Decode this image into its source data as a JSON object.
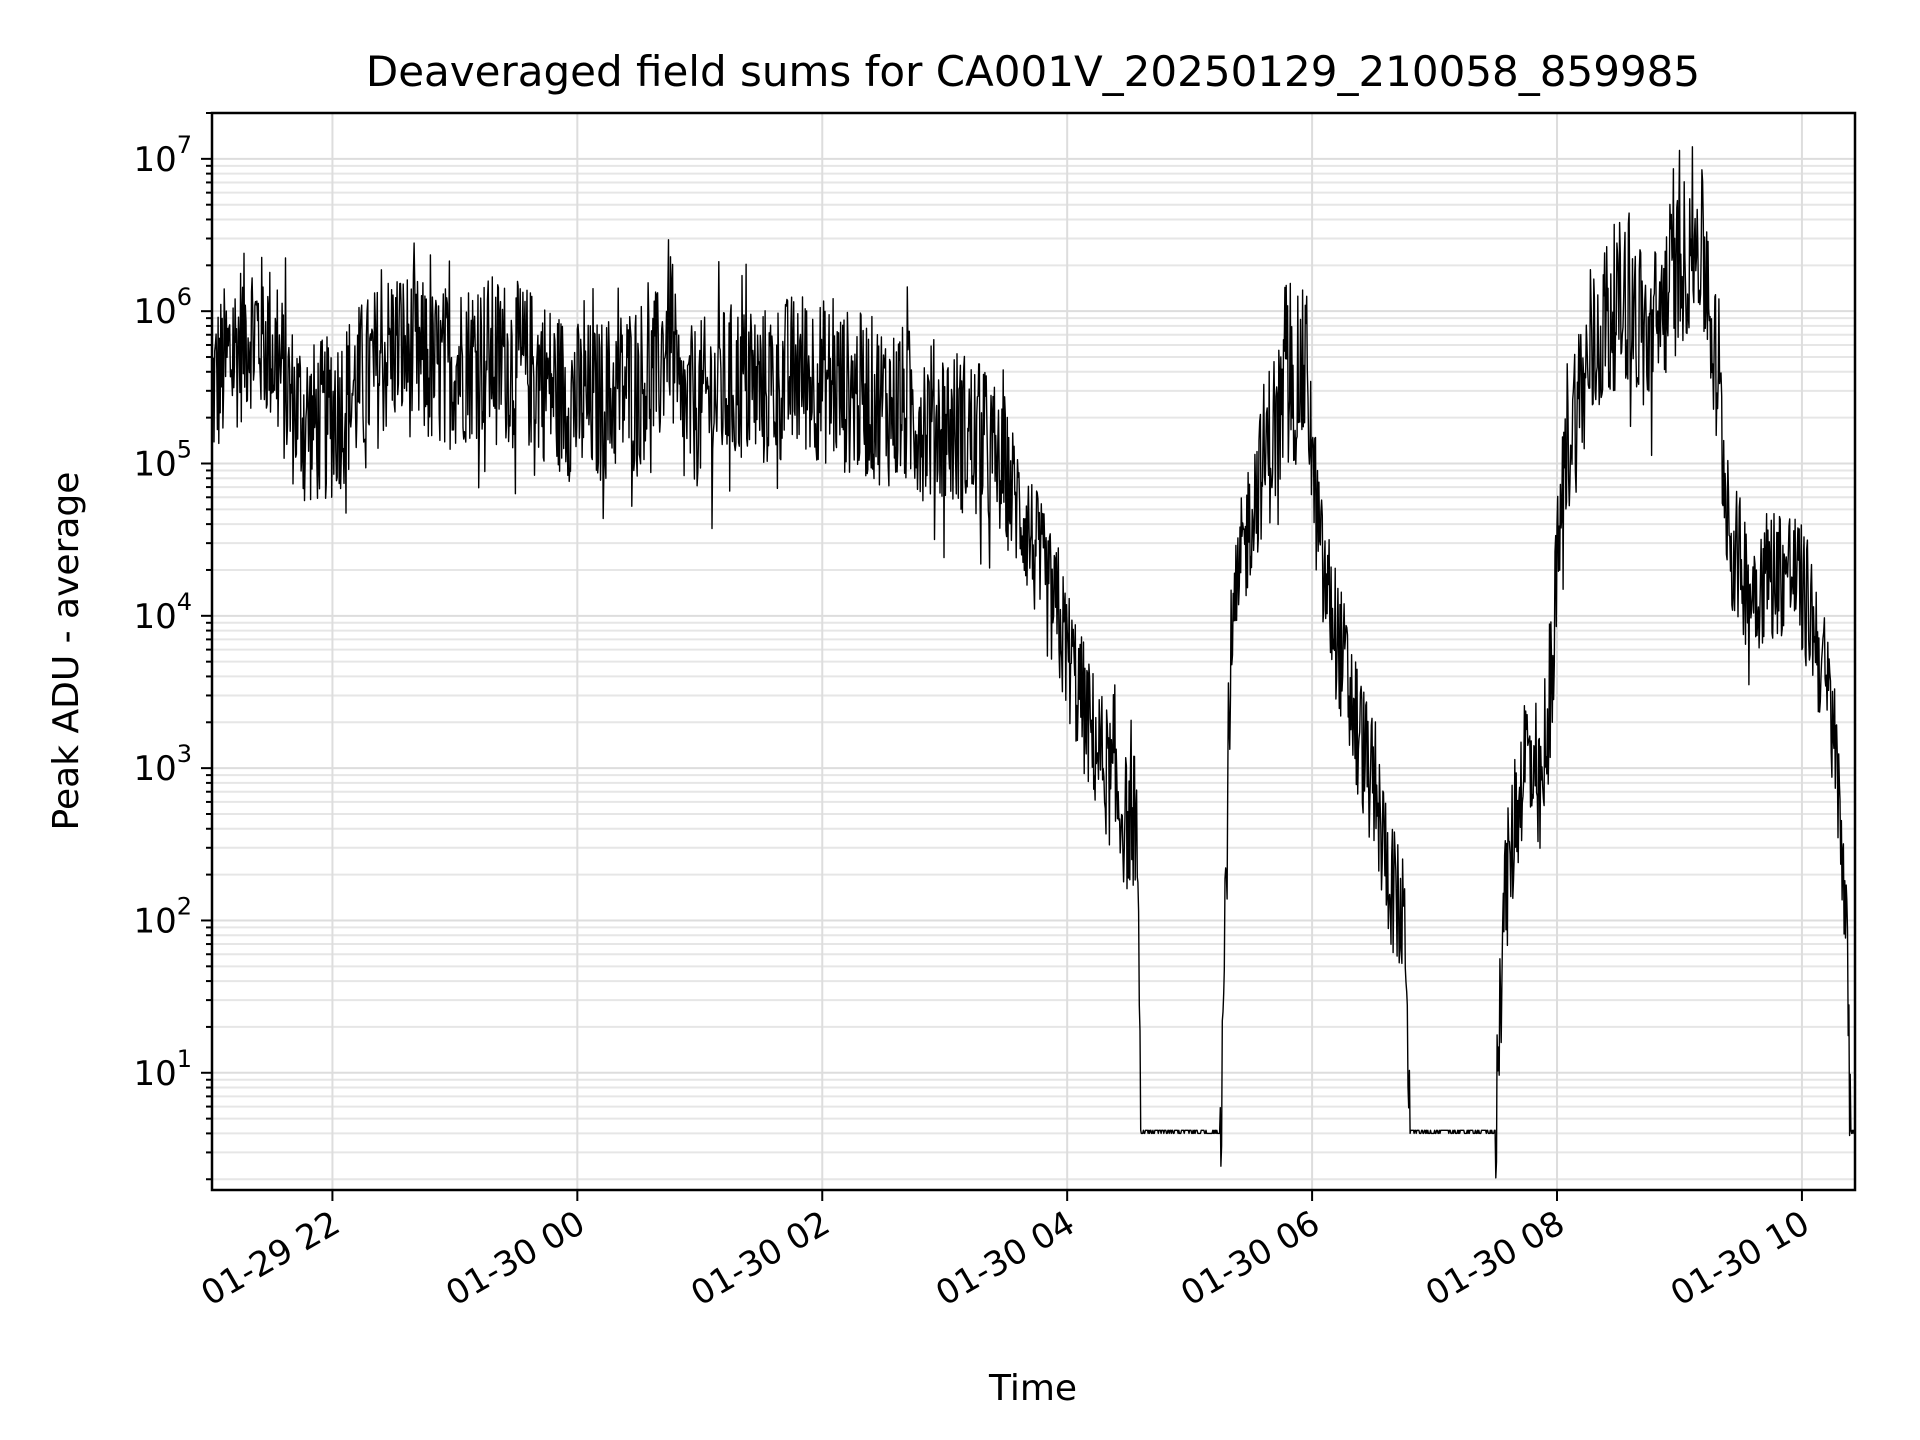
{
  "chart_data": {
    "type": "line",
    "title": "Deaveraged field sums for CA001V_20250129_210058_859985",
    "xlabel": "Time",
    "ylabel": "Peak ADU - average",
    "yscale": "log",
    "ylim": [
      1.7,
      20000000
    ],
    "xlim": [
      "01-29 21:01",
      "01-30 10:26"
    ],
    "grid": true,
    "line_color": "#000000",
    "grid_color": "#dddddd",
    "x_ticks": [
      {
        "time": "01-29 22:00",
        "label": "01-29 22"
      },
      {
        "time": "01-30 00:00",
        "label": "01-30 00"
      },
      {
        "time": "01-30 02:00",
        "label": "01-30 02"
      },
      {
        "time": "01-30 04:00",
        "label": "01-30 04"
      },
      {
        "time": "01-30 06:00",
        "label": "01-30 06"
      },
      {
        "time": "01-30 08:00",
        "label": "01-30 08"
      },
      {
        "time": "01-30 10:00",
        "label": "01-30 10"
      }
    ],
    "y_ticks": [
      {
        "value": 10,
        "base": "10",
        "exp": "1"
      },
      {
        "value": 100,
        "base": "10",
        "exp": "2"
      },
      {
        "value": 1000,
        "base": "10",
        "exp": "3"
      },
      {
        "value": 10000,
        "base": "10",
        "exp": "4"
      },
      {
        "value": 100000,
        "base": "10",
        "exp": "5"
      },
      {
        "value": 1000000,
        "base": "10",
        "exp": "6"
      },
      {
        "value": 10000000,
        "base": "10",
        "exp": "7"
      }
    ],
    "series": [
      {
        "points": [
          [
            "01-29 21:01",
            300000
          ],
          [
            "01-29 21:10",
            500000
          ],
          [
            "01-29 21:20",
            800000
          ],
          [
            "01-29 21:30",
            600000
          ],
          [
            "01-29 21:40",
            250000
          ],
          [
            "01-29 21:50",
            180000
          ],
          [
            "01-29 22:00",
            200000
          ],
          [
            "01-29 22:10",
            300000
          ],
          [
            "01-29 22:20",
            400000
          ],
          [
            "01-29 22:30",
            600000
          ],
          [
            "01-29 22:40",
            500000
          ],
          [
            "01-29 22:50",
            400000
          ],
          [
            "01-29 23:00",
            450000
          ],
          [
            "01-29 23:10",
            500000
          ],
          [
            "01-29 23:20",
            500000
          ],
          [
            "01-29 23:30",
            450000
          ],
          [
            "01-29 23:40",
            400000
          ],
          [
            "01-29 23:50",
            300000
          ],
          [
            "01-30 00:00",
            250000
          ],
          [
            "01-30 00:10",
            250000
          ],
          [
            "01-30 00:20",
            300000
          ],
          [
            "01-30 00:30",
            350000
          ],
          [
            "01-30 00:40",
            400000
          ],
          [
            "01-30 00:45",
            900000
          ],
          [
            "01-30 00:50",
            200000
          ],
          [
            "01-30 01:00",
            250000
          ],
          [
            "01-30 01:10",
            300000
          ],
          [
            "01-30 01:20",
            350000
          ],
          [
            "01-30 01:30",
            300000
          ],
          [
            "01-30 01:40",
            350000
          ],
          [
            "01-30 01:50",
            400000
          ],
          [
            "01-30 02:00",
            350000
          ],
          [
            "01-30 02:10",
            300000
          ],
          [
            "01-30 02:20",
            280000
          ],
          [
            "01-30 02:30",
            250000
          ],
          [
            "01-30 02:40",
            230000
          ],
          [
            "01-30 02:50",
            200000
          ],
          [
            "01-30 03:00",
            180000
          ],
          [
            "01-30 03:10",
            160000
          ],
          [
            "01-30 03:20",
            120000
          ],
          [
            "01-30 03:30",
            80000
          ],
          [
            "01-30 03:40",
            40000
          ],
          [
            "01-30 03:50",
            15000
          ],
          [
            "01-30 04:00",
            6000
          ],
          [
            "01-30 04:10",
            2000
          ],
          [
            "01-30 04:20",
            900
          ],
          [
            "01-30 04:30",
            400
          ],
          [
            "01-30 04:34",
            500
          ],
          [
            "01-30 04:36",
            4
          ],
          [
            "01-30 05:15",
            4
          ],
          [
            "01-30 05:17",
            50
          ],
          [
            "01-30 05:20",
            5000
          ],
          [
            "01-30 05:25",
            20000
          ],
          [
            "01-30 05:30",
            50000
          ],
          [
            "01-30 05:40",
            150000
          ],
          [
            "01-30 05:50",
            300000
          ],
          [
            "01-30 05:55",
            400000
          ],
          [
            "01-30 05:58",
            400000
          ],
          [
            "01-30 06:00",
            100000
          ],
          [
            "01-30 06:05",
            20000
          ],
          [
            "01-30 06:15",
            5000
          ],
          [
            "01-30 06:30",
            700
          ],
          [
            "01-30 06:40",
            150
          ],
          [
            "01-30 06:46",
            80
          ],
          [
            "01-30 06:48",
            4
          ],
          [
            "01-30 07:30",
            4
          ],
          [
            "01-30 07:33",
            100
          ],
          [
            "01-30 07:45",
            1500
          ],
          [
            "01-30 07:50",
            500
          ],
          [
            "01-30 07:55",
            1000
          ],
          [
            "01-30 08:00",
            20000
          ],
          [
            "01-30 08:05",
            150000
          ],
          [
            "01-30 08:15",
            400000
          ],
          [
            "01-30 08:25",
            1000000
          ],
          [
            "01-30 08:35",
            1200000
          ],
          [
            "01-30 08:45",
            600000
          ],
          [
            "01-30 08:55",
            1500000
          ],
          [
            "01-30 09:05",
            2500000
          ],
          [
            "01-30 09:10",
            3000000
          ],
          [
            "01-30 09:15",
            1000000
          ],
          [
            "01-30 09:20",
            200000
          ],
          [
            "01-30 09:25",
            30000
          ],
          [
            "01-30 09:35",
            15000
          ],
          [
            "01-30 09:45",
            20000
          ],
          [
            "01-30 09:55",
            20000
          ],
          [
            "01-30 10:05",
            10000
          ],
          [
            "01-30 10:15",
            2000
          ],
          [
            "01-30 10:21",
            200
          ],
          [
            "01-30 10:24",
            4
          ],
          [
            "01-30 10:26",
            4
          ]
        ]
      }
    ]
  }
}
